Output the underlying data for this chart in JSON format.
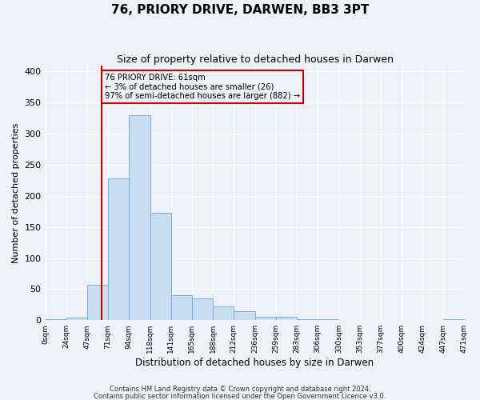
{
  "title": "76, PRIORY DRIVE, DARWEN, BB3 3PT",
  "subtitle": "Size of property relative to detached houses in Darwen",
  "xlabel": "Distribution of detached houses by size in Darwen",
  "ylabel": "Number of detached properties",
  "bin_labels": [
    "0sqm",
    "24sqm",
    "47sqm",
    "71sqm",
    "94sqm",
    "118sqm",
    "141sqm",
    "165sqm",
    "188sqm",
    "212sqm",
    "236sqm",
    "259sqm",
    "283sqm",
    "306sqm",
    "330sqm",
    "353sqm",
    "377sqm",
    "400sqm",
    "424sqm",
    "447sqm",
    "471sqm"
  ],
  "bar_heights": [
    2,
    4,
    57,
    228,
    330,
    173,
    40,
    35,
    22,
    14,
    6,
    6,
    2,
    1,
    0,
    0,
    0,
    0,
    0,
    2
  ],
  "bar_color": "#c9ddf0",
  "bar_edgecolor": "#7bafd4",
  "ylim": [
    0,
    410
  ],
  "yticks": [
    0,
    50,
    100,
    150,
    200,
    250,
    300,
    350,
    400
  ],
  "property_size_bin": 2.7,
  "red_line_color": "#cc0000",
  "annotation_text": "76 PRIORY DRIVE: 61sqm\n← 3% of detached houses are smaller (26)\n97% of semi-detached houses are larger (882) →",
  "annotation_box_edgecolor": "#cc0000",
  "footer_line1": "Contains HM Land Registry data © Crown copyright and database right 2024.",
  "footer_line2": "Contains public sector information licensed under the Open Government Licence v3.0.",
  "background_color": "#eef2f8",
  "grid_color": "#ffffff"
}
